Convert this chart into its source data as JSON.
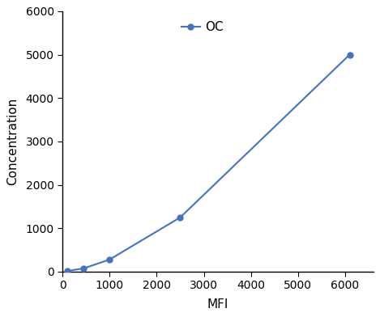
{
  "x": [
    100,
    450,
    1000,
    2500,
    6100
  ],
  "y": [
    15,
    75,
    280,
    1250,
    5000
  ],
  "line_color": "#4472C4",
  "marker_color": "#4472C4",
  "marker_style": "o",
  "marker_size": 5,
  "line_width": 1.5,
  "xlabel": "MFI",
  "ylabel": "Concentration",
  "xlim": [
    0,
    6600
  ],
  "ylim": [
    0,
    6000
  ],
  "xticks": [
    0,
    1000,
    2000,
    3000,
    4000,
    5000,
    6000
  ],
  "yticks": [
    0,
    1000,
    2000,
    3000,
    4000,
    5000,
    6000
  ],
  "legend_label": "OC",
  "xlabel_fontsize": 11,
  "ylabel_fontsize": 11,
  "tick_fontsize": 10,
  "legend_fontsize": 11,
  "background_color": "#ffffff"
}
